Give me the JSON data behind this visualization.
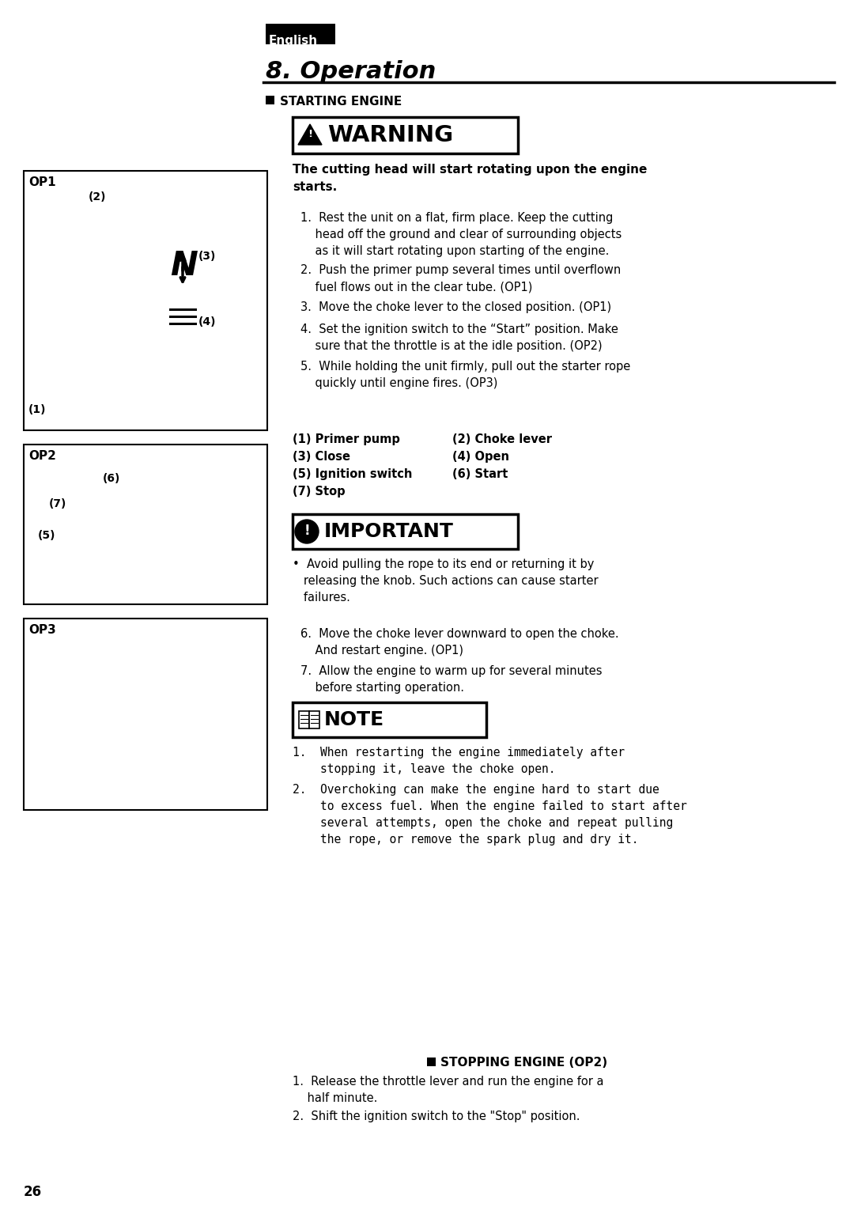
{
  "page_bg": "#ffffff",
  "page_number": "26",
  "english_label": "English",
  "section_title": "8. Operation",
  "section_header": "STARTING ENGINE",
  "warning_text_bold": "The cutting head will start rotating upon the engine\nstarts.",
  "steps_1_5": [
    "1.  Rest the unit on a flat, firm place. Keep the cutting\n    head off the ground and clear of surrounding objects\n    as it will start rotating upon starting of the engine.",
    "2.  Push the primer pump several times until overflown\n    fuel flows out in the clear tube. (OP1)",
    "3.  Move the choke lever to the closed position. (OP1)",
    "4.  Set the ignition switch to the “Start” position. Make\n    sure that the throttle is at the idle position. (OP2)",
    "5.  While holding the unit firmly, pull out the starter rope\n    quickly until engine fires. (OP3)"
  ],
  "legend_col1": [
    "(1) Primer pump",
    "(3) Close",
    "(5) Ignition switch",
    "(7) Stop"
  ],
  "legend_col2": [
    "(2) Choke lever",
    "(4) Open",
    "(6) Start",
    ""
  ],
  "important_text": "•  Avoid pulling the rope to its end or returning it by\n   releasing the knob. Such actions can cause starter\n   failures.",
  "steps_6_7": [
    "6.  Move the choke lever downward to open the choke.\n    And restart engine. (OP1)",
    "7.  Allow the engine to warm up for several minutes\n    before starting operation."
  ],
  "note_items": [
    "1.  When restarting the engine immediately after\n    stopping it, leave the choke open.",
    "2.  Overchoking can make the engine hard to start due\n    to excess fuel. When the engine failed to start after\n    several attempts, open the choke and repeat pulling\n    the rope, or remove the spark plug and dry it."
  ],
  "stopping_header": "STOPPING ENGINE (OP2)",
  "stopping_steps": [
    "1.  Release the throttle lever and run the engine for a\n    half minute.",
    "2.  Shift the ignition switch to the \"Stop\" position."
  ]
}
